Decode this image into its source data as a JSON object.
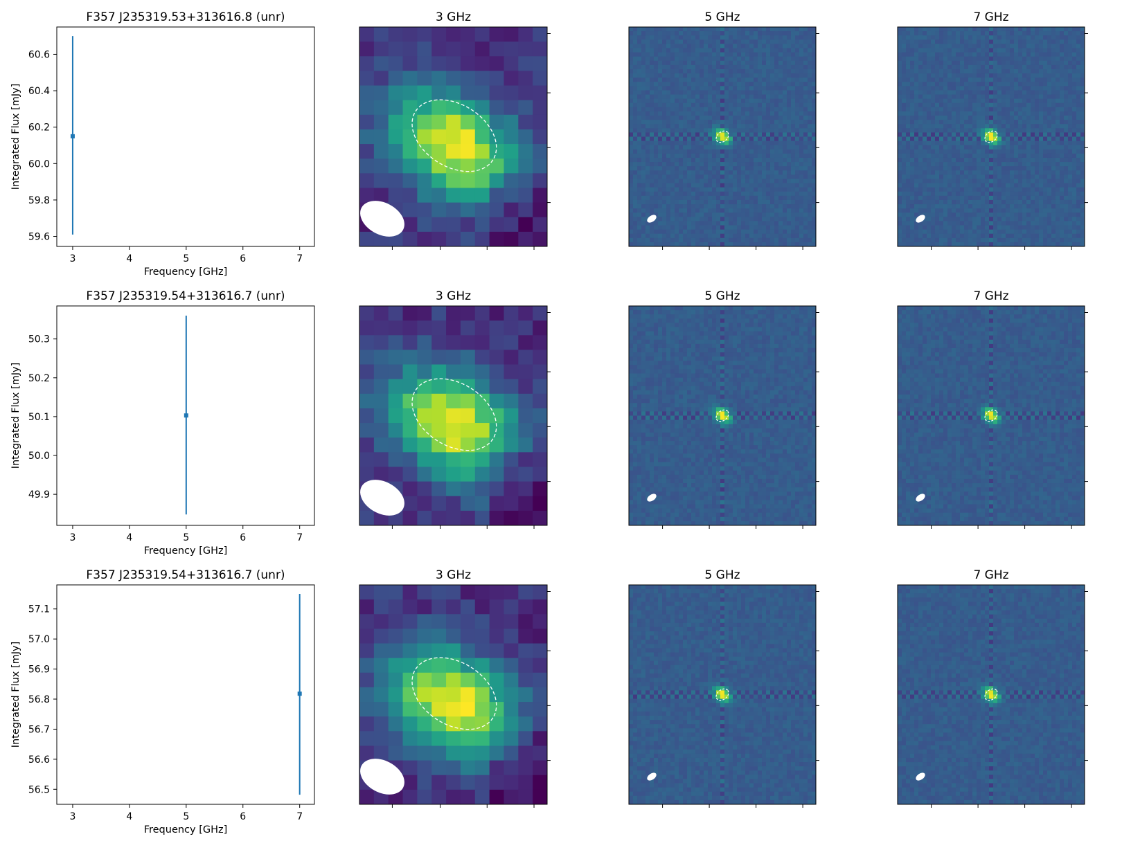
{
  "figure": {
    "xlabel": "Frequency [GHz]",
    "ylabel": "Integrated Flux [mJy]",
    "image_titles": [
      "3 GHz",
      "5 GHz",
      "7 GHz"
    ],
    "colormap": "viridis",
    "contour_style": "white dashed ellipse",
    "beam_style": "white filled ellipse (lower left)"
  },
  "chart_data": [
    {
      "type": "scatter",
      "title": "F357 J235319.53+313616.8 (unr)",
      "xlabel": "Frequency [GHz]",
      "ylabel": "Integrated Flux [mJy]",
      "xlim": [
        2.72,
        7.26
      ],
      "ylim": [
        59.545,
        60.75
      ],
      "xticks": [
        3,
        4,
        5,
        6,
        7
      ],
      "yticks": [
        59.6,
        59.8,
        60.0,
        60.2,
        60.4,
        60.6
      ],
      "ytick_labels": [
        "59.6",
        "59.8",
        "60.0",
        "60.2",
        "60.4",
        "60.6"
      ],
      "points": [
        {
          "x": 3,
          "y": 60.15,
          "yerr_low": 59.61,
          "yerr_high": 60.7
        }
      ],
      "color": "#1f77b4",
      "grid": false
    },
    {
      "type": "scatter",
      "title": "F357 J235319.54+313616.7 (unr)",
      "xlabel": "Frequency [GHz]",
      "ylabel": "Integrated Flux [mJy]",
      "xlim": [
        2.72,
        7.26
      ],
      "ylim": [
        49.82,
        50.385
      ],
      "xticks": [
        3,
        4,
        5,
        6,
        7
      ],
      "yticks": [
        49.9,
        50.0,
        50.1,
        50.2,
        50.3
      ],
      "ytick_labels": [
        "49.9",
        "50.0",
        "50.1",
        "50.2",
        "50.3"
      ],
      "points": [
        {
          "x": 5,
          "y": 50.103,
          "yerr_low": 49.848,
          "yerr_high": 50.36
        }
      ],
      "color": "#1f77b4",
      "grid": false
    },
    {
      "type": "scatter",
      "title": "F357 J235319.54+313616.7 (unr)",
      "xlabel": "Frequency [GHz]",
      "ylabel": "Integrated Flux [mJy]",
      "xlim": [
        2.72,
        7.26
      ],
      "ylim": [
        56.45,
        57.18
      ],
      "xticks": [
        3,
        4,
        5,
        6,
        7
      ],
      "yticks": [
        56.5,
        56.6,
        56.7,
        56.8,
        56.9,
        57.0,
        57.1
      ],
      "ytick_labels": [
        "56.5",
        "56.6",
        "56.7",
        "56.8",
        "56.9",
        "57.0",
        "57.1"
      ],
      "points": [
        {
          "x": 7,
          "y": 56.818,
          "yerr_low": 56.482,
          "yerr_high": 57.15
        }
      ],
      "color": "#1f77b4",
      "grid": false
    }
  ]
}
